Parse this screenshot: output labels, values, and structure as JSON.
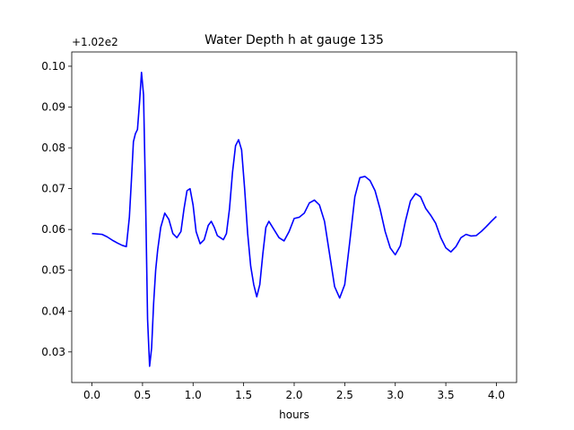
{
  "chart_data": {
    "type": "line",
    "title": "Water Depth h at gauge 135",
    "xlabel": "hours",
    "ylabel": "",
    "offset_label": "+1.02e2",
    "xlim": [
      -0.2,
      4.2
    ],
    "ylim": [
      0.0225,
      0.1035
    ],
    "x_ticks": [
      0.0,
      0.5,
      1.0,
      1.5,
      2.0,
      2.5,
      3.0,
      3.5,
      4.0
    ],
    "x_tick_labels": [
      "0.0",
      "0.5",
      "1.0",
      "1.5",
      "2.0",
      "2.5",
      "3.0",
      "3.5",
      "4.0"
    ],
    "y_ticks": [
      0.03,
      0.04,
      0.05,
      0.06,
      0.07,
      0.08,
      0.09,
      0.1
    ],
    "y_tick_labels": [
      "0.03",
      "0.04",
      "0.05",
      "0.06",
      "0.07",
      "0.08",
      "0.09",
      "0.10"
    ],
    "grid": false,
    "line_color": "#0000ff",
    "series": [
      {
        "x": [
          0.0,
          0.1,
          0.15,
          0.2,
          0.25,
          0.3,
          0.34,
          0.37,
          0.39,
          0.41,
          0.43,
          0.45,
          0.47,
          0.49,
          0.51,
          0.53,
          0.55,
          0.57,
          0.59,
          0.61,
          0.63,
          0.65,
          0.68,
          0.72,
          0.76,
          0.8,
          0.84,
          0.88,
          0.91,
          0.94,
          0.97,
          1.0,
          1.03,
          1.07,
          1.11,
          1.15,
          1.18,
          1.21,
          1.24,
          1.27,
          1.3,
          1.33,
          1.36,
          1.39,
          1.42,
          1.45,
          1.48,
          1.51,
          1.54,
          1.57,
          1.6,
          1.63,
          1.66,
          1.69,
          1.72,
          1.75,
          1.8,
          1.85,
          1.9,
          1.95,
          2.0,
          2.05,
          2.1,
          2.15,
          2.2,
          2.25,
          2.3,
          2.35,
          2.4,
          2.45,
          2.5,
          2.55,
          2.6,
          2.65,
          2.7,
          2.75,
          2.8,
          2.85,
          2.9,
          2.95,
          3.0,
          3.05,
          3.1,
          3.15,
          3.2,
          3.25,
          3.3,
          3.35,
          3.4,
          3.45,
          3.5,
          3.55,
          3.6,
          3.65,
          3.7,
          3.75,
          3.8,
          3.85,
          3.9,
          3.95,
          4.0
        ],
        "y": [
          0.059,
          0.0588,
          0.0582,
          0.0574,
          0.0567,
          0.0561,
          0.0558,
          0.063,
          0.072,
          0.0815,
          0.0835,
          0.0845,
          0.091,
          0.0985,
          0.093,
          0.068,
          0.038,
          0.0265,
          0.031,
          0.042,
          0.05,
          0.055,
          0.0605,
          0.064,
          0.0625,
          0.059,
          0.058,
          0.0595,
          0.065,
          0.0695,
          0.07,
          0.066,
          0.0595,
          0.0565,
          0.0575,
          0.061,
          0.062,
          0.0605,
          0.0585,
          0.058,
          0.0575,
          0.059,
          0.065,
          0.074,
          0.0805,
          0.082,
          0.0795,
          0.07,
          0.059,
          0.051,
          0.0465,
          0.0435,
          0.0465,
          0.054,
          0.0605,
          0.062,
          0.06,
          0.058,
          0.0572,
          0.0595,
          0.0627,
          0.063,
          0.064,
          0.0665,
          0.0672,
          0.066,
          0.062,
          0.054,
          0.046,
          0.0432,
          0.0465,
          0.057,
          0.068,
          0.0727,
          0.073,
          0.072,
          0.0695,
          0.065,
          0.0595,
          0.0555,
          0.0538,
          0.056,
          0.062,
          0.067,
          0.0688,
          0.068,
          0.0652,
          0.0635,
          0.0615,
          0.058,
          0.0555,
          0.0545,
          0.0558,
          0.058,
          0.0588,
          0.0584,
          0.0585,
          0.0595,
          0.0607,
          0.062,
          0.0632
        ]
      }
    ]
  }
}
